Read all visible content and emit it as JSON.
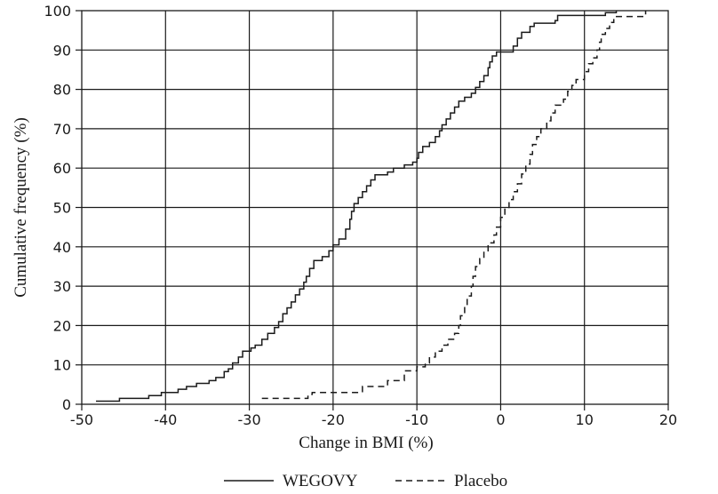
{
  "chart_data": {
    "type": "line",
    "step": true,
    "xlabel": "Change in BMI (%)",
    "ylabel": "Cumulative frequency (%)",
    "xlim": [
      -50,
      20
    ],
    "ylim": [
      0,
      100
    ],
    "xticks": [
      -50,
      -40,
      -30,
      -20,
      -10,
      0,
      10,
      20
    ],
    "yticks": [
      0,
      10,
      20,
      30,
      40,
      50,
      60,
      70,
      80,
      90,
      100
    ],
    "grid": true,
    "legend_position": "bottom",
    "series": [
      {
        "name": "WEGOVY",
        "line_style": "solid",
        "color": "#1a1a1a",
        "points": [
          [
            -48.3,
            0.8
          ],
          [
            -45.5,
            1.5
          ],
          [
            -42,
            2.2
          ],
          [
            -40.5,
            3
          ],
          [
            -38.5,
            3.8
          ],
          [
            -37.5,
            4.5
          ],
          [
            -36.3,
            5.3
          ],
          [
            -34.8,
            6
          ],
          [
            -34,
            6.8
          ],
          [
            -33,
            8.3
          ],
          [
            -32.5,
            9
          ],
          [
            -32,
            10.5
          ],
          [
            -31.3,
            12
          ],
          [
            -30.8,
            13.5
          ],
          [
            -29.8,
            14.3
          ],
          [
            -29.3,
            15
          ],
          [
            -28.5,
            16.5
          ],
          [
            -27.8,
            18
          ],
          [
            -27,
            19.5
          ],
          [
            -26.5,
            21
          ],
          [
            -26,
            23
          ],
          [
            -25.5,
            24.5
          ],
          [
            -25,
            26
          ],
          [
            -24.5,
            27.8
          ],
          [
            -24,
            29.3
          ],
          [
            -23.5,
            31
          ],
          [
            -23.2,
            32.5
          ],
          [
            -22.8,
            34.5
          ],
          [
            -22.3,
            36.5
          ],
          [
            -21.3,
            37.5
          ],
          [
            -20.5,
            39
          ],
          [
            -20,
            40.5
          ],
          [
            -19.3,
            42
          ],
          [
            -18.5,
            44.5
          ],
          [
            -18,
            47
          ],
          [
            -17.8,
            49
          ],
          [
            -17.5,
            51
          ],
          [
            -17,
            52.5
          ],
          [
            -16.5,
            54
          ],
          [
            -16,
            55.5
          ],
          [
            -15.5,
            57
          ],
          [
            -15,
            58.3
          ],
          [
            -13.5,
            59
          ],
          [
            -12.8,
            60
          ],
          [
            -11.5,
            60.8
          ],
          [
            -10.5,
            61.5
          ],
          [
            -10,
            62.5
          ],
          [
            -9.8,
            64
          ],
          [
            -9.3,
            65.5
          ],
          [
            -8.5,
            66.5
          ],
          [
            -7.8,
            68
          ],
          [
            -7.3,
            69.5
          ],
          [
            -7,
            71
          ],
          [
            -6.5,
            72.5
          ],
          [
            -6,
            74
          ],
          [
            -5.5,
            75.5
          ],
          [
            -5,
            77
          ],
          [
            -4.3,
            78
          ],
          [
            -3.5,
            79
          ],
          [
            -3,
            80.5
          ],
          [
            -2.5,
            82
          ],
          [
            -2,
            83.5
          ],
          [
            -1.5,
            85.5
          ],
          [
            -1.3,
            87
          ],
          [
            -1,
            88.5
          ],
          [
            -0.5,
            89.5
          ],
          [
            1.5,
            91
          ],
          [
            2,
            93
          ],
          [
            2.5,
            94.5
          ],
          [
            3.5,
            96
          ],
          [
            4,
            96.8
          ],
          [
            6.5,
            97.5
          ],
          [
            6.8,
            98.8
          ],
          [
            12.5,
            99.5
          ],
          [
            13.8,
            100
          ]
        ]
      },
      {
        "name": "Placebo",
        "line_style": "dashed",
        "color": "#1a1a1a",
        "points": [
          [
            -28.5,
            1.5
          ],
          [
            -23,
            2.5
          ],
          [
            -22.5,
            3
          ],
          [
            -16.5,
            4.5
          ],
          [
            -13.5,
            6
          ],
          [
            -11.5,
            8.5
          ],
          [
            -10,
            9.5
          ],
          [
            -9,
            10.5
          ],
          [
            -8.5,
            12
          ],
          [
            -7.8,
            13.5
          ],
          [
            -7,
            15
          ],
          [
            -6.3,
            16.5
          ],
          [
            -5.5,
            18
          ],
          [
            -5,
            20
          ],
          [
            -4.8,
            22.5
          ],
          [
            -4.3,
            25
          ],
          [
            -4,
            27.5
          ],
          [
            -3.5,
            30
          ],
          [
            -3.3,
            32.5
          ],
          [
            -3,
            35
          ],
          [
            -2.5,
            37
          ],
          [
            -2,
            39
          ],
          [
            -1.5,
            41
          ],
          [
            -0.8,
            43
          ],
          [
            -0.5,
            45
          ],
          [
            0,
            47.5
          ],
          [
            0.5,
            50
          ],
          [
            1,
            52
          ],
          [
            1.5,
            54
          ],
          [
            2,
            56
          ],
          [
            2.5,
            58.5
          ],
          [
            3,
            61
          ],
          [
            3.5,
            63.5
          ],
          [
            3.8,
            66
          ],
          [
            4.3,
            68
          ],
          [
            4.8,
            70
          ],
          [
            5.5,
            72
          ],
          [
            6,
            74
          ],
          [
            6.5,
            76
          ],
          [
            7.5,
            77.5
          ],
          [
            8,
            79.5
          ],
          [
            8.5,
            81
          ],
          [
            9,
            82.5
          ],
          [
            10,
            84.5
          ],
          [
            10.5,
            86.5
          ],
          [
            11,
            88
          ],
          [
            11.5,
            90
          ],
          [
            11.8,
            92
          ],
          [
            12,
            94
          ],
          [
            12.5,
            95.5
          ],
          [
            13,
            97
          ],
          [
            13.5,
            98.5
          ],
          [
            17.3,
            100
          ]
        ]
      }
    ]
  }
}
